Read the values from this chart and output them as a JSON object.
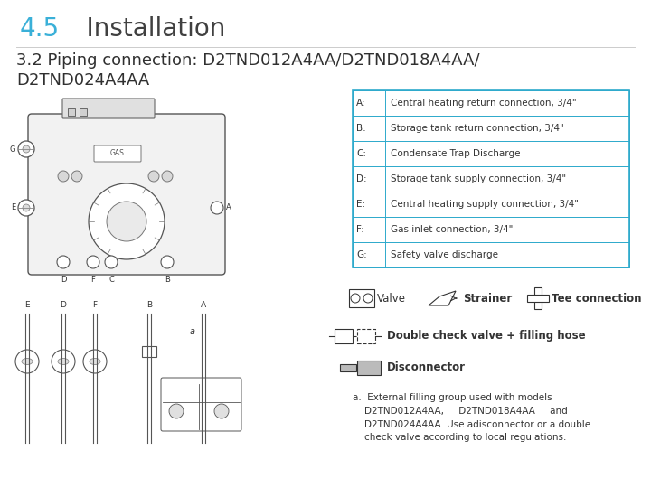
{
  "title_number": "4.5",
  "title_text": "    Installation",
  "subtitle_line1": "3.2 Piping connection: D2TND012A4AA/D2TND018A4AA/",
  "subtitle_line2": "D2TND024A4AA",
  "title_color": "#3ab0d8",
  "title_fontsize": 20,
  "subtitle_fontsize": 13,
  "bg_color": "#ffffff",
  "table_headers": [
    "A:",
    "B:",
    "C:",
    "D:",
    "E:",
    "F:",
    "G:"
  ],
  "table_values": [
    "Central heating return connection, 3/4\"",
    "Storage tank return connection, 3/4\"",
    "Condensate Trap Discharge",
    "Storage tank supply connection, 3/4\"",
    "Central heating supply connection, 3/4\"",
    "Gas inlet connection, 3/4\"",
    "Safety valve discharge"
  ],
  "table_border_color": "#2eaacc",
  "text_fontsize": 7.5,
  "legend_fontsize": 8.5,
  "note_text": "a.  External filling group used with models\n    D2TND012A4AA,     D2TND018A4AA     and\n    D2TND024A4AA. Use adisconnector or a double\n    check valve according to local regulations.",
  "dcv_label": "Double check valve + filling hose",
  "disc_label": "Disconnector"
}
